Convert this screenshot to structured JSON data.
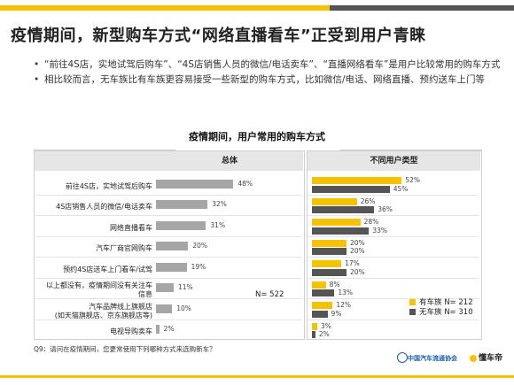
{
  "header": {
    "title": "疫情期间，新型购车方式“网络直播看车”正受到用户青睐"
  },
  "bullets": [
    "“前往4S店，实地试驾后购车”、“4S店销售人员的微信/电话卖车”、“直播网络看车”是用户比较常用的购车方式",
    "相比较而言，无车族比有车族更容易接受一些新型的购车方式，比如微信/电话、网络直播、预约送车上门等"
  ],
  "chart_data": {
    "type": "bar",
    "title": "疫情期间，用户常用的购车方式",
    "categories": [
      "前往4S店，实地试驾后购车",
      "4S店销售人员的微信/电话卖车",
      "网络直播看车",
      "汽车厂商官网购车",
      "预约4S店送车上门看车/试驾",
      "以上都没有，疫情期间没有关注车信息",
      "汽车品牌线上旗舰店（如天猫旗舰店、京东旗舰店等）",
      "电视导购卖车"
    ],
    "category_lines": [
      [
        "前往4S店，实地试驾后购车"
      ],
      [
        "4S店销售人员的微信/电话卖车"
      ],
      [
        "网络直播看车"
      ],
      [
        "汽车厂商官网购车"
      ],
      [
        "预约4S店送车上门看车/试驾"
      ],
      [
        "以上都没有，疫情期间没有关注车",
        "信息"
      ],
      [
        "汽车品牌线上旗舰店",
        "(如天猫旗舰店、京东旗舰店等)"
      ],
      [
        "电视导购卖车"
      ]
    ],
    "panels": [
      {
        "title": "总体",
        "n_label": "N= 522",
        "series": [
          {
            "values": [
              48,
              32,
              31,
              20,
              19,
              11,
              10,
              2
            ],
            "labels": [
              "48%",
              "32%",
              "31%",
              "20%",
              "19%",
              "11%",
              "10%",
              "2%"
            ],
            "color": "#a6a6a6"
          }
        ],
        "xlim": [
          0,
          100
        ]
      },
      {
        "title": "不同用户类型",
        "series": [
          {
            "name": "有车族 N= 212",
            "values": [
              52,
              26,
              28,
              20,
              17,
              8,
              12,
              3
            ],
            "labels": [
              "52%",
              "26%",
              "28%",
              "20%",
              "17%",
              "8%",
              "12%",
              "3%"
            ],
            "color": "#f5c200"
          },
          {
            "name": "无车族 N= 310",
            "values": [
              45,
              36,
              33,
              20,
              20,
              13,
              9,
              2
            ],
            "labels": [
              "45%",
              "36%",
              "33%",
              "20%",
              "20%",
              "13%",
              "9%",
              "2%"
            ],
            "color": "#555555"
          }
        ],
        "xlim": [
          0,
          100
        ]
      }
    ]
  },
  "note": "Q9：请问在疫情期间，您更常使用下列哪种方式来选购新车？",
  "footer": {
    "logo_left": "中国汽车流通协会",
    "logo_right": "懂车帝"
  }
}
